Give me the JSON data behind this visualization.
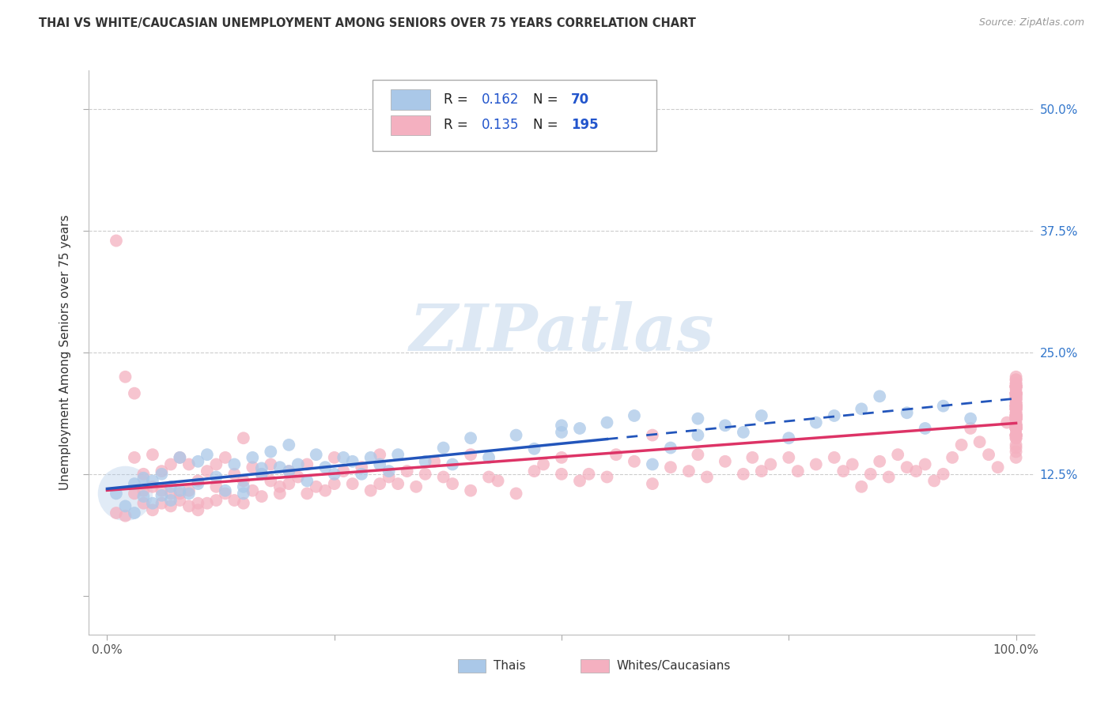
{
  "title": "THAI VS WHITE/CAUCASIAN UNEMPLOYMENT AMONG SENIORS OVER 75 YEARS CORRELATION CHART",
  "source": "Source: ZipAtlas.com",
  "ylabel": "Unemployment Among Seniors over 75 years",
  "watermark": "ZIPatlas",
  "thai_scatter_color": "#aac8e8",
  "white_scatter_color": "#f4b0c0",
  "trend_thai_color": "#2255bb",
  "trend_white_color": "#dd3366",
  "legend_thai_color": "#aac8e8",
  "legend_white_color": "#f4b0c0",
  "watermark_color": "#dde8f4",
  "right_tick_color": "#3377cc",
  "thai_R": "0.162",
  "thai_N": "70",
  "white_R": "0.135",
  "white_N": "195",
  "thai_x": [
    1,
    2,
    3,
    3,
    4,
    4,
    5,
    5,
    6,
    6,
    7,
    7,
    8,
    8,
    9,
    10,
    10,
    11,
    12,
    13,
    14,
    15,
    15,
    16,
    17,
    17,
    18,
    19,
    20,
    20,
    21,
    22,
    23,
    24,
    25,
    26,
    27,
    28,
    29,
    30,
    31,
    32,
    35,
    37,
    38,
    40,
    42,
    45,
    47,
    50,
    50,
    52,
    55,
    58,
    60,
    62,
    65,
    65,
    68,
    70,
    72,
    75,
    78,
    80,
    83,
    85,
    88,
    90,
    92,
    95
  ],
  "thai_y": [
    10.5,
    9.2,
    11.5,
    8.5,
    10.2,
    12.1,
    9.5,
    11.8,
    10.3,
    12.5,
    9.8,
    11.2,
    10.8,
    14.2,
    10.5,
    13.8,
    11.5,
    14.5,
    12.2,
    10.8,
    13.5,
    11.2,
    10.5,
    14.2,
    13.1,
    12.5,
    14.8,
    13.2,
    15.5,
    12.8,
    13.5,
    11.8,
    14.5,
    13.2,
    12.5,
    14.2,
    13.8,
    12.5,
    14.2,
    13.5,
    12.8,
    14.5,
    13.8,
    15.2,
    13.5,
    16.2,
    14.2,
    16.5,
    15.1,
    17.5,
    16.8,
    17.2,
    17.8,
    18.5,
    13.5,
    15.2,
    16.5,
    18.2,
    17.5,
    16.8,
    18.5,
    16.2,
    17.8,
    18.5,
    19.2,
    20.5,
    18.8,
    17.2,
    19.5,
    18.2
  ],
  "white_x": [
    1,
    1,
    2,
    2,
    3,
    3,
    3,
    4,
    4,
    4,
    5,
    5,
    5,
    6,
    6,
    6,
    7,
    7,
    7,
    8,
    8,
    8,
    9,
    9,
    9,
    10,
    10,
    10,
    11,
    11,
    12,
    12,
    12,
    13,
    13,
    14,
    14,
    15,
    15,
    15,
    16,
    16,
    17,
    17,
    18,
    18,
    19,
    19,
    20,
    20,
    21,
    22,
    22,
    23,
    24,
    25,
    25,
    26,
    27,
    28,
    29,
    30,
    30,
    31,
    32,
    33,
    34,
    35,
    36,
    37,
    38,
    40,
    40,
    42,
    43,
    45,
    47,
    48,
    50,
    50,
    52,
    53,
    55,
    56,
    58,
    60,
    60,
    62,
    64,
    65,
    66,
    68,
    70,
    71,
    72,
    73,
    75,
    76,
    78,
    80,
    81,
    82,
    83,
    84,
    85,
    86,
    87,
    88,
    89,
    90,
    91,
    92,
    93,
    94,
    95,
    96,
    97,
    98,
    99,
    100,
    100,
    100,
    100,
    100,
    100,
    100,
    100,
    100,
    100,
    100,
    100,
    100,
    100,
    100,
    100,
    100,
    100,
    100,
    100,
    100,
    100,
    100,
    100,
    100,
    100,
    100,
    100,
    100,
    100,
    100,
    100,
    100,
    100,
    100,
    100,
    100,
    100,
    100,
    100,
    100,
    100,
    100,
    100,
    100,
    100,
    100,
    100,
    100,
    100,
    100,
    100,
    100,
    100,
    100,
    100,
    100,
    100,
    100,
    100,
    100,
    100,
    100,
    100,
    100,
    100,
    100,
    100,
    100,
    100,
    100,
    100,
    100,
    100,
    100,
    100
  ],
  "white_y": [
    36.5,
    8.5,
    8.2,
    22.5,
    10.5,
    14.2,
    20.8,
    9.5,
    10.8,
    12.5,
    8.8,
    11.2,
    14.5,
    9.5,
    10.8,
    12.8,
    9.2,
    10.5,
    13.5,
    9.8,
    10.5,
    14.2,
    9.2,
    10.8,
    13.5,
    8.8,
    9.5,
    11.8,
    9.5,
    12.8,
    9.8,
    11.2,
    13.5,
    10.5,
    14.2,
    9.8,
    12.5,
    9.5,
    11.8,
    16.2,
    10.8,
    13.2,
    10.2,
    12.5,
    11.8,
    13.5,
    11.2,
    10.5,
    12.8,
    11.5,
    12.2,
    10.5,
    13.5,
    11.2,
    10.8,
    11.5,
    14.2,
    12.8,
    11.5,
    13.2,
    10.8,
    11.5,
    14.5,
    12.2,
    11.5,
    12.8,
    11.2,
    12.5,
    13.8,
    12.2,
    11.5,
    10.8,
    14.5,
    12.2,
    11.8,
    10.5,
    12.8,
    13.5,
    12.5,
    14.2,
    11.8,
    12.5,
    12.2,
    14.5,
    13.8,
    11.5,
    16.5,
    13.2,
    12.8,
    14.5,
    12.2,
    13.8,
    12.5,
    14.2,
    12.8,
    13.5,
    14.2,
    12.8,
    13.5,
    14.2,
    12.8,
    13.5,
    11.2,
    12.5,
    13.8,
    12.2,
    14.5,
    13.2,
    12.8,
    13.5,
    11.8,
    12.5,
    14.2,
    15.5,
    17.2,
    15.8,
    14.5,
    13.2,
    17.8,
    16.5,
    15.2,
    14.2,
    19.5,
    18.2,
    17.5,
    16.5,
    18.8,
    17.2,
    19.5,
    20.8,
    18.5,
    17.2,
    19.2,
    16.5,
    20.5,
    19.2,
    18.5,
    17.2,
    21.5,
    20.2,
    19.5,
    18.2,
    21.8,
    19.5,
    20.8,
    18.5,
    17.2,
    21.5,
    19.8,
    20.5,
    18.2,
    17.5,
    19.2,
    21.8,
    16.5,
    17.8,
    21.2,
    18.5,
    20.2,
    21.5,
    19.2,
    18.5,
    17.2,
    20.8,
    19.5,
    18.2,
    21.5,
    20.8,
    17.5,
    16.2,
    18.8,
    22.5,
    20.2,
    19.5,
    18.2,
    20.8,
    21.5,
    17.2,
    16.5,
    19.8,
    22.2,
    20.5,
    19.2,
    18.5,
    20.8,
    17.5,
    16.2,
    15.5,
    14.8,
    18.5,
    22.2,
    21.5,
    19.8,
    18.2,
    17.5
  ]
}
